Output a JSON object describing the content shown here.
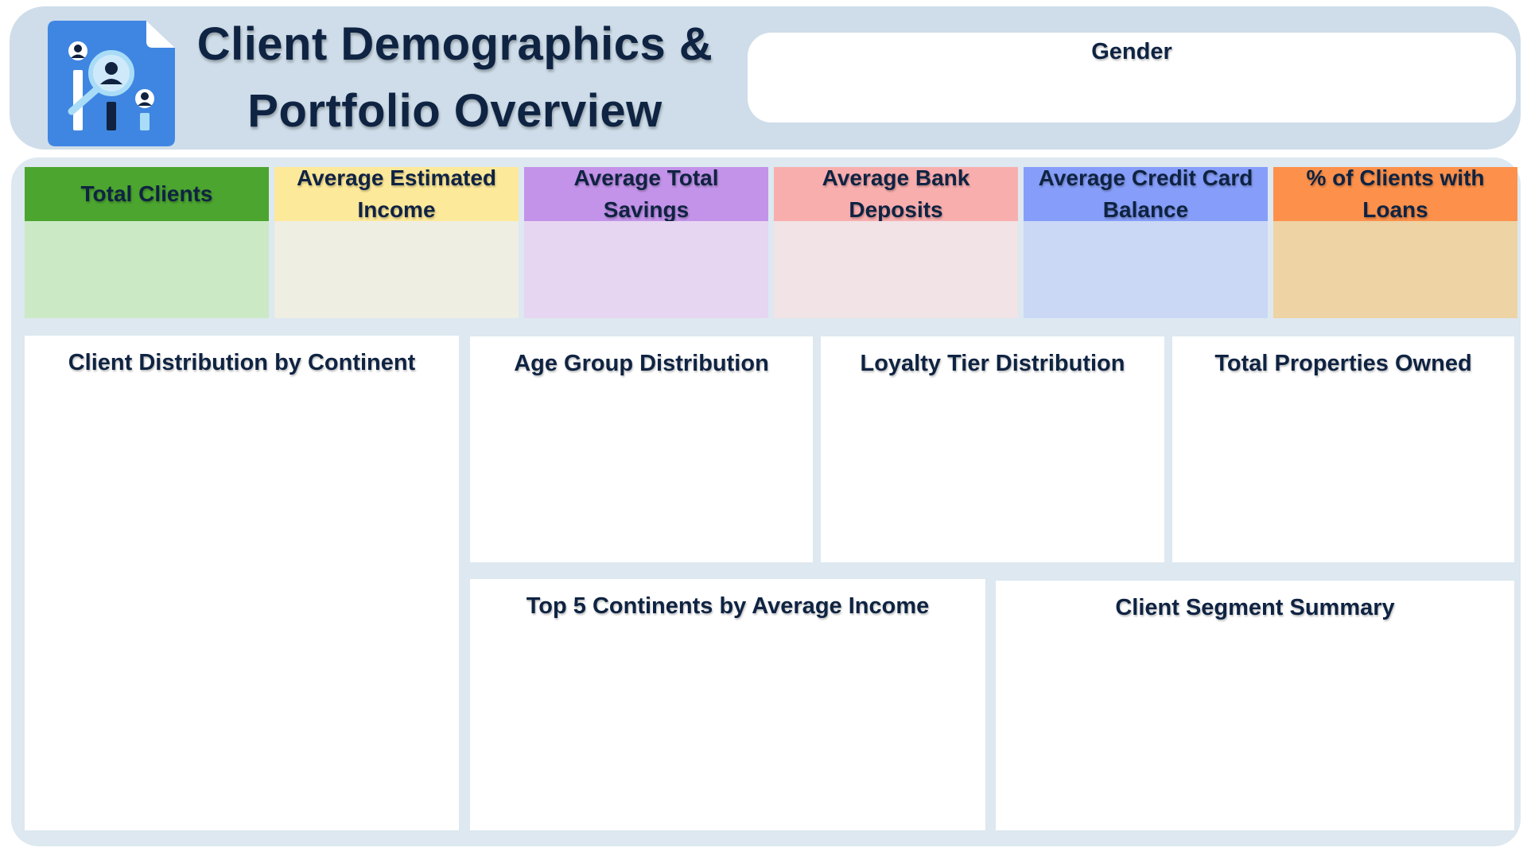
{
  "header": {
    "title_line1": "Client Demographics &",
    "title_line2": "Portfolio Overview",
    "logo_icon": "client-analytics-icon",
    "colors": {
      "header_bg": "#cedde9",
      "logo_bg": "#3f86e2",
      "logo_fold": "#ffffff",
      "text": "#0f2342"
    }
  },
  "gender_panel": {
    "title": "Gender"
  },
  "kpis": [
    {
      "label": "Total Clients",
      "head_color": "#4ba52f",
      "body_color": "#cce9c6"
    },
    {
      "label": "Average Estimated Income",
      "head_color": "#fde99a",
      "body_color": "#efeee3"
    },
    {
      "label": "Average Total Savings",
      "head_color": "#c393e9",
      "body_color": "#e6d6f2"
    },
    {
      "label": "Average Bank Deposits",
      "head_color": "#f9aeae",
      "body_color": "#f1e3e6"
    },
    {
      "label": "Average Credit Card Balance",
      "head_color": "#869ef9",
      "body_color": "#cad8f6"
    },
    {
      "label": "% of Clients with Loans",
      "head_color": "#fd914b",
      "body_color": "#eed3a4"
    }
  ],
  "panels": {
    "continent": {
      "title": "Client Distribution by Continent"
    },
    "age_group": {
      "title": "Age Group Distribution"
    },
    "loyalty": {
      "title": "Loyalty Tier Distribution"
    },
    "properties": {
      "title": "Total Properties Owned"
    },
    "top5": {
      "title": "Top 5 Continents by Average Income"
    },
    "segment": {
      "title": "Client Segment Summary"
    }
  },
  "frame_color": "#dde8f0"
}
